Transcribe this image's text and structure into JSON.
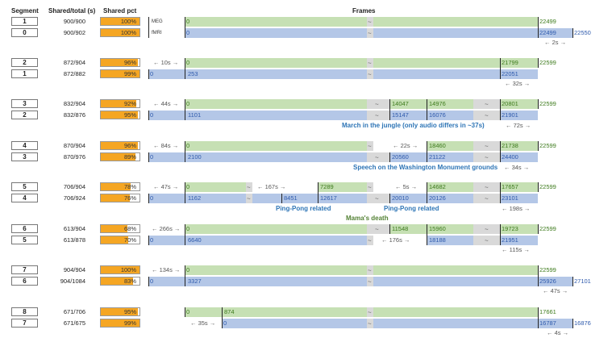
{
  "headers": {
    "segment": "Segment",
    "shared_total": "Shared/total (s)",
    "shared_pct": "Shared pct",
    "frames": "Frames"
  },
  "groups": [
    {
      "rows": [
        {
          "segment": "1",
          "shared_total": "900/900",
          "pct_label": "100%",
          "pct": 100,
          "modality": "MEG"
        },
        {
          "segment": "0",
          "shared_total": "900/902",
          "pct_label": "100%",
          "pct": 100,
          "modality": "fMRI"
        }
      ],
      "offsets": [
        "← 2s →"
      ]
    },
    {
      "rows": [
        {
          "segment": "2",
          "shared_total": "872/904",
          "pct_label": "96%",
          "pct": 96
        },
        {
          "segment": "1",
          "shared_total": "872/882",
          "pct_label": "99%",
          "pct": 99
        }
      ],
      "offsets": [
        "← 10s →",
        "← 32s →"
      ]
    },
    {
      "rows": [
        {
          "segment": "3",
          "shared_total": "832/904",
          "pct_label": "92%",
          "pct": 92
        },
        {
          "segment": "2",
          "shared_total": "832/876",
          "pct_label": "95%",
          "pct": 95
        }
      ],
      "offsets": [
        "← 44s →",
        "← 72s →"
      ],
      "notes": [
        "March in the jungle (only audio differs in ~37s)"
      ]
    },
    {
      "rows": [
        {
          "segment": "4",
          "shared_total": "870/904",
          "pct_label": "96%",
          "pct": 96
        },
        {
          "segment": "3",
          "shared_total": "870/976",
          "pct_label": "89%",
          "pct": 89
        }
      ],
      "offsets": [
        "← 84s →",
        "← 22s →",
        "← 34s →"
      ],
      "notes": [
        "Speech on the Washington Monument grounds"
      ]
    },
    {
      "rows": [
        {
          "segment": "5",
          "shared_total": "706/904",
          "pct_label": "78%",
          "pct": 78
        },
        {
          "segment": "4",
          "shared_total": "706/924",
          "pct_label": "76%",
          "pct": 76
        }
      ],
      "offsets": [
        "← 47s →",
        "← 167s →",
        "← 5s →",
        "← 198s →"
      ],
      "notes": [
        "Ping-Pong related",
        "Ping-Pong related",
        "Mama's death"
      ]
    },
    {
      "rows": [
        {
          "segment": "6",
          "shared_total": "613/904",
          "pct_label": "68%",
          "pct": 68
        },
        {
          "segment": "5",
          "shared_total": "613/878",
          "pct_label": "70%",
          "pct": 70
        }
      ],
      "offsets": [
        "← 266s →",
        "← 176s →",
        "← 115s →"
      ]
    },
    {
      "rows": [
        {
          "segment": "7",
          "shared_total": "904/904",
          "pct_label": "100%",
          "pct": 100
        },
        {
          "segment": "6",
          "shared_total": "904/1084",
          "pct_label": "83%",
          "pct": 83
        }
      ],
      "offsets": [
        "← 134s →",
        "← 47s →"
      ]
    },
    {
      "rows": [
        {
          "segment": "8",
          "shared_total": "671/706",
          "pct_label": "95%",
          "pct": 95
        },
        {
          "segment": "7",
          "shared_total": "671/675",
          "pct_label": "99%",
          "pct": 99
        }
      ],
      "offsets": [
        "← 35s →",
        "← 4s →"
      ]
    }
  ],
  "frame_labels": {
    "g0": [
      "0",
      "22499"
    ],
    "b0": [
      "0",
      "22499",
      "22550"
    ],
    "g1": [
      "0",
      "21799",
      "22599"
    ],
    "b1": [
      "0",
      "253",
      "22051"
    ],
    "g2": [
      "0",
      "14047",
      "14976",
      "20801",
      "22599"
    ],
    "b2": [
      "0",
      "1101",
      "15147",
      "16076",
      "21901"
    ],
    "g3": [
      "0",
      "18460",
      "21738",
      "22599"
    ],
    "b3": [
      "0",
      "2100",
      "20560",
      "21122",
      "24400"
    ],
    "g4": [
      "0",
      "7289",
      "14682",
      "17657",
      "22599"
    ],
    "b4": [
      "0",
      "1162",
      "8451",
      "12617",
      "20010",
      "20126",
      "23101"
    ],
    "g5": [
      "0",
      "11548",
      "15960",
      "19723",
      "22599"
    ],
    "b5": [
      "0",
      "6640",
      "18188",
      "21951"
    ],
    "g6": [
      "0",
      "22599"
    ],
    "b6": [
      "0",
      "3327",
      "25926",
      "27101"
    ],
    "g7": [
      "0",
      "874",
      "17661"
    ],
    "b7": [
      "0",
      "16787",
      "16876"
    ]
  },
  "gap_symbol": "~",
  "colors": {
    "green_bar": "#c6e0b4",
    "blue_bar": "#b4c7e7",
    "pct_fill": "#f5a623",
    "gap": "#d9d9d9"
  }
}
